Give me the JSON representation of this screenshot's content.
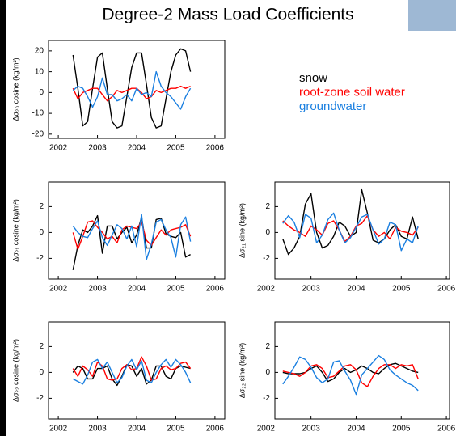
{
  "title": "Degree-2 Mass Load Coefficients",
  "chart_data": [
    {
      "type": "line",
      "y_label": "Δσ₂₀ cosine (kg/m²)",
      "x": [
        2002.375,
        2002.5,
        2002.625,
        2002.75,
        2002.875,
        2003,
        2003.125,
        2003.25,
        2003.375,
        2003.5,
        2003.625,
        2003.75,
        2003.875,
        2004,
        2004.125,
        2004.25,
        2004.375,
        2004.5,
        2004.625,
        2004.75,
        2004.875,
        2005,
        2005.125,
        2005.25,
        2005.375
      ],
      "xlim": [
        2001.75,
        2006.25
      ],
      "xticks": [
        2002,
        2003,
        2004,
        2005,
        2006
      ],
      "ylim": [
        -22,
        25
      ],
      "yticks": [
        -20,
        -10,
        0,
        10,
        20
      ],
      "series": [
        {
          "name": "snow",
          "color": "#000000",
          "values": [
            18,
            2,
            -16,
            -14,
            2,
            17,
            19,
            2,
            -14,
            -17,
            -16,
            -2,
            12,
            19,
            19,
            4,
            -12,
            -17,
            -16,
            -3,
            10,
            18,
            21,
            20,
            10
          ]
        },
        {
          "name": "root-zone soil water",
          "color": "#ff0000",
          "values": [
            2,
            -3,
            0,
            1,
            2,
            2,
            -1,
            -4,
            -2,
            1,
            0,
            1,
            2,
            2,
            0,
            -3,
            -2,
            1,
            0,
            1,
            2,
            2,
            3,
            2,
            3
          ]
        },
        {
          "name": "groundwater",
          "color": "#1a7fe0",
          "values": [
            1,
            3,
            2,
            -2,
            -7,
            -2,
            7,
            -1,
            -1,
            -4,
            -3,
            -1,
            -4,
            2,
            -1,
            0,
            -2,
            10,
            3,
            0,
            -2,
            -5,
            -8,
            -2,
            2
          ]
        }
      ]
    },
    {
      "type": "line",
      "y_label": "Δσ₂₁ cosine (kg/m²)",
      "x": [
        2002.375,
        2002.5,
        2002.625,
        2002.75,
        2002.875,
        2003,
        2003.125,
        2003.25,
        2003.375,
        2003.5,
        2003.625,
        2003.75,
        2003.875,
        2004,
        2004.125,
        2004.25,
        2004.375,
        2004.5,
        2004.625,
        2004.75,
        2004.875,
        2005,
        2005.125,
        2005.25,
        2005.375
      ],
      "xlim": [
        2001.75,
        2006.25
      ],
      "xticks": [
        2002,
        2003,
        2004,
        2005,
        2006
      ],
      "ylim": [
        -3.6,
        3.9
      ],
      "yticks": [
        -2,
        0,
        2
      ],
      "series": [
        {
          "color": "#000000",
          "values": [
            -2.9,
            -1,
            0.2,
            0,
            0.5,
            1.3,
            -1.6,
            0.5,
            0.5,
            -0.5,
            0,
            0.4,
            -0.8,
            -0.2,
            1.2,
            -1.2,
            -1.2,
            1.0,
            1.1,
            -0.1,
            -0.3,
            -0.4,
            0,
            -1.9,
            -1.7
          ]
        },
        {
          "color": "#ff0000",
          "values": [
            0,
            -1.3,
            -0.3,
            0.8,
            0.9,
            0.4,
            0,
            -0.5,
            -0.3,
            -0.8,
            0.2,
            0.5,
            0.4,
            0.3,
            0.8,
            -0.6,
            -1.0,
            -0.4,
            0.2,
            -0.2,
            0.2,
            0.3,
            0.4,
            0.6,
            -0.3
          ]
        },
        {
          "color": "#1a7fe0",
          "values": [
            0.5,
            0,
            -0.3,
            -0.4,
            0.3,
            0.9,
            -0.4,
            -1.0,
            -0.2,
            0.6,
            0.3,
            -0.5,
            0.5,
            -1.1,
            1.4,
            -2.1,
            -0.9,
            0.8,
            1.0,
            0.2,
            -0.4,
            -1.9,
            0.6,
            1.2,
            -0.7
          ]
        }
      ]
    },
    {
      "type": "line",
      "y_label": "Δσ₂₁ sine (kg/m²)",
      "x": [
        2002.375,
        2002.5,
        2002.625,
        2002.75,
        2002.875,
        2003,
        2003.125,
        2003.25,
        2003.375,
        2003.5,
        2003.625,
        2003.75,
        2003.875,
        2004,
        2004.125,
        2004.25,
        2004.375,
        2004.5,
        2004.625,
        2004.75,
        2004.875,
        2005,
        2005.125,
        2005.25,
        2005.375
      ],
      "xlim": [
        2002.2,
        2006.07
      ],
      "xticks": [
        2002,
        2003,
        2004,
        2005,
        2006
      ],
      "ylim": [
        -3.6,
        3.9
      ],
      "yticks": [
        -2,
        0,
        2
      ],
      "series": [
        {
          "color": "#000000",
          "values": [
            -0.5,
            -1.7,
            -1.2,
            -0.3,
            2.2,
            3.0,
            0,
            -1.2,
            -1.0,
            -0.3,
            0.8,
            0.5,
            -0.3,
            0,
            3.3,
            1.5,
            -0.6,
            -0.8,
            -0.5,
            0.2,
            0.6,
            -0.3,
            -0.5,
            1.2,
            -0.5
          ]
        },
        {
          "color": "#ff0000",
          "values": [
            0.9,
            0.5,
            0.2,
            0,
            -0.3,
            0.5,
            0.2,
            -0.2,
            0.7,
            0.9,
            0.2,
            -0.7,
            -0.3,
            0.5,
            0.7,
            1.3,
            0.2,
            -0.3,
            0,
            -0.5,
            0.4,
            0.1,
            0,
            -0.2,
            0.4
          ]
        },
        {
          "color": "#1a7fe0",
          "values": [
            0.7,
            1.3,
            0.8,
            -0.4,
            1.4,
            1.1,
            -0.8,
            -0.2,
            1.0,
            1.5,
            0.2,
            -0.8,
            -0.4,
            0.4,
            1.2,
            1.4,
            0.2,
            -0.9,
            -0.5,
            0.8,
            0.6,
            -1.4,
            -0.5,
            -0.8,
            0.5
          ]
        }
      ]
    },
    {
      "type": "line",
      "y_label": "Δσ₂₂ cosine (kg/m²)",
      "x": [
        2002.375,
        2002.5,
        2002.625,
        2002.75,
        2002.875,
        2003,
        2003.125,
        2003.25,
        2003.375,
        2003.5,
        2003.625,
        2003.75,
        2003.875,
        2004,
        2004.125,
        2004.25,
        2004.375,
        2004.5,
        2004.625,
        2004.75,
        2004.875,
        2005,
        2005.125,
        2005.25,
        2005.375
      ],
      "xlim": [
        2001.75,
        2006.25
      ],
      "xticks": [
        2002,
        2003,
        2004,
        2005,
        2006
      ],
      "ylim": [
        -3.6,
        3.9
      ],
      "yticks": [
        -2,
        0,
        2
      ],
      "series": [
        {
          "color": "#000000",
          "values": [
            0,
            0.5,
            0.3,
            -0.5,
            -0.5,
            0.3,
            0.3,
            0.5,
            -0.5,
            -1.0,
            -0.3,
            0.6,
            0.5,
            -0.3,
            0.3,
            -0.9,
            -0.6,
            0.5,
            0.5,
            -0.3,
            -0.5,
            0.3,
            0.5,
            0.4,
            0.3
          ]
        },
        {
          "color": "#ff0000",
          "values": [
            0.3,
            -0.3,
            0.5,
            0.2,
            -0.3,
            0.8,
            0.5,
            -0.5,
            -0.6,
            -0.5,
            0.3,
            0.6,
            0.2,
            0.3,
            1.2,
            0.5,
            -0.6,
            -0.5,
            0.3,
            0.5,
            0.2,
            0.3,
            0.7,
            0.8,
            0.3
          ]
        },
        {
          "color": "#1a7fe0",
          "values": [
            -0.5,
            -0.7,
            -0.9,
            -0.2,
            0.8,
            1.0,
            0.3,
            0.8,
            0,
            -0.8,
            -0.4,
            0.5,
            1.0,
            0.2,
            0.9,
            -0.6,
            -0.8,
            0,
            0.6,
            1.0,
            0.4,
            1.0,
            0.6,
            0,
            -0.8
          ]
        }
      ]
    },
    {
      "type": "line",
      "y_label": "Δσ₂₂ sine (kg/m²)",
      "x": [
        2002.375,
        2002.5,
        2002.625,
        2002.75,
        2002.875,
        2003,
        2003.125,
        2003.25,
        2003.375,
        2003.5,
        2003.625,
        2003.75,
        2003.875,
        2004,
        2004.125,
        2004.25,
        2004.375,
        2004.5,
        2004.625,
        2004.75,
        2004.875,
        2005,
        2005.125,
        2005.25,
        2005.375
      ],
      "xlim": [
        2002.2,
        2006.07
      ],
      "xticks": [
        2002,
        2003,
        2004,
        2005,
        2006
      ],
      "ylim": [
        -3.6,
        3.9
      ],
      "yticks": [
        -2,
        0,
        2
      ],
      "series": [
        {
          "color": "#000000",
          "values": [
            0,
            -0.1,
            -0.1,
            -0.1,
            0,
            0.3,
            0.5,
            0,
            -0.7,
            -0.5,
            0,
            0.3,
            0,
            0.2,
            0.5,
            0.3,
            0,
            -0.1,
            0.3,
            0.6,
            0.7,
            0.5,
            0.3,
            0.1,
            0
          ]
        },
        {
          "color": "#ff0000",
          "values": [
            0.1,
            0,
            -0.1,
            -0.3,
            0,
            0.5,
            0.6,
            0.3,
            -0.4,
            -0.3,
            0.1,
            0.5,
            0.6,
            0.2,
            -0.8,
            -1.1,
            -0.3,
            0.3,
            0.6,
            0.6,
            0.3,
            0.6,
            0.5,
            0.6,
            -0.5
          ]
        },
        {
          "color": "#1a7fe0",
          "values": [
            -0.9,
            -0.3,
            0.4,
            1.2,
            1.0,
            0.4,
            -0.4,
            -0.8,
            -0.5,
            0.8,
            0.9,
            0.1,
            -0.6,
            -1.7,
            -0.2,
            0.3,
            0.8,
            1.3,
            1.0,
            0.2,
            -0.2,
            -0.5,
            -0.8,
            -1.0,
            -1.4
          ]
        }
      ]
    }
  ]
}
